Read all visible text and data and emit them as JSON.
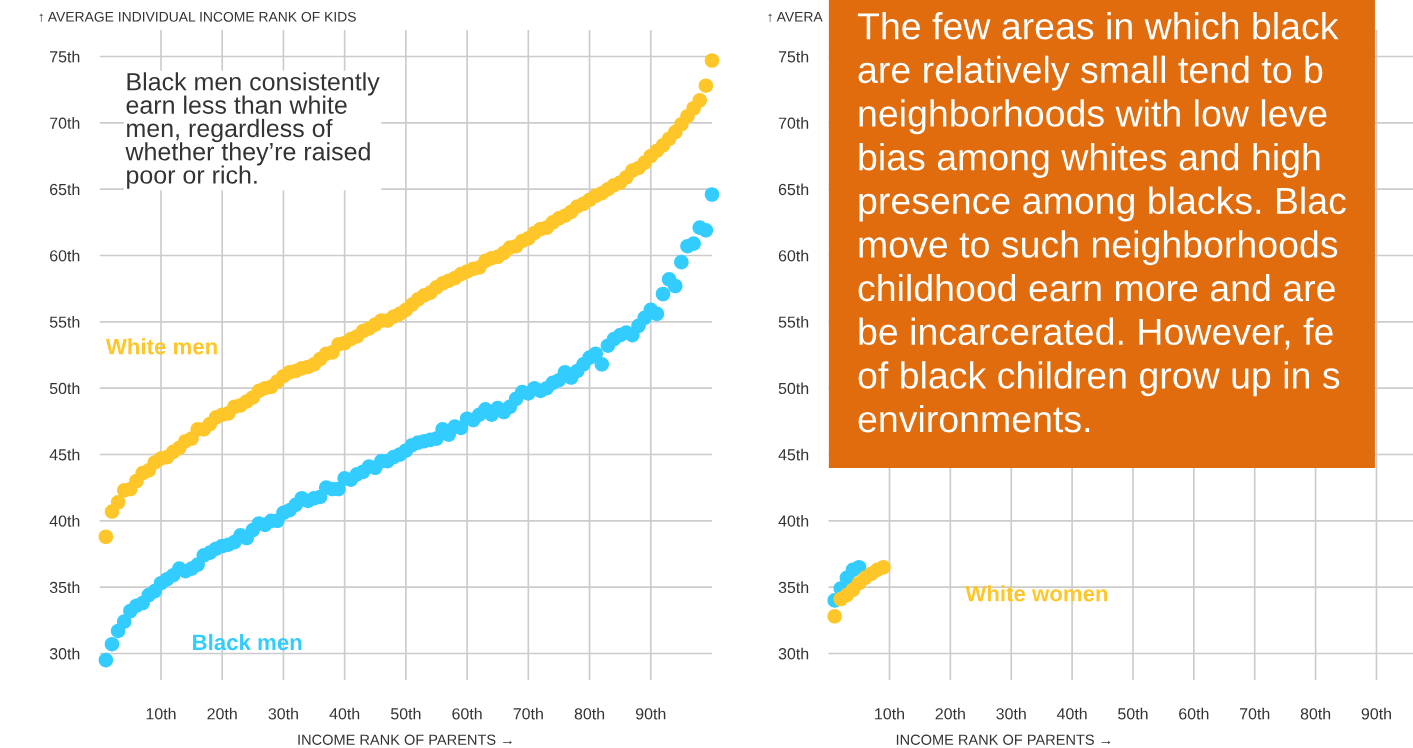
{
  "chart_data": [
    {
      "type": "scatter",
      "ylabel": "↑ AVERAGE INDIVIDUAL INCOME RANK OF KIDS",
      "xlabel": "INCOME RANK OF PARENTS →",
      "annotations": [
        "Black men consistently\nearn less than white\nmen, regardless of\nwhether they’re raised\npoor or rich."
      ],
      "xlim": [
        0,
        100
      ],
      "ylim": [
        28,
        77
      ],
      "xticks": [
        {
          "value": 10,
          "label": "10th"
        },
        {
          "value": 20,
          "label": "20th"
        },
        {
          "value": 30,
          "label": "30th"
        },
        {
          "value": 40,
          "label": "40th"
        },
        {
          "value": 50,
          "label": "50th"
        },
        {
          "value": 60,
          "label": "60th"
        },
        {
          "value": 70,
          "label": "70th"
        },
        {
          "value": 80,
          "label": "80th"
        },
        {
          "value": 90,
          "label": "90th"
        }
      ],
      "yticks": [
        {
          "value": 30,
          "label": "30th"
        },
        {
          "value": 35,
          "label": "35th"
        },
        {
          "value": 40,
          "label": "40th"
        },
        {
          "value": 45,
          "label": "45th"
        },
        {
          "value": 50,
          "label": "50th"
        },
        {
          "value": 55,
          "label": "55th"
        },
        {
          "value": 60,
          "label": "60th"
        },
        {
          "value": 65,
          "label": "65th"
        },
        {
          "value": 70,
          "label": "70th"
        },
        {
          "value": 75,
          "label": "75th"
        }
      ],
      "grid": true,
      "marker": "circle",
      "x": [
        1,
        2,
        3,
        4,
        5,
        6,
        7,
        8,
        9,
        10,
        11,
        12,
        13,
        14,
        15,
        16,
        17,
        18,
        19,
        20,
        21,
        22,
        23,
        24,
        25,
        26,
        27,
        28,
        29,
        30,
        31,
        32,
        33,
        34,
        35,
        36,
        37,
        38,
        39,
        40,
        41,
        42,
        43,
        44,
        45,
        46,
        47,
        48,
        49,
        50,
        51,
        52,
        53,
        54,
        55,
        56,
        57,
        58,
        59,
        60,
        61,
        62,
        63,
        64,
        65,
        66,
        67,
        68,
        69,
        70,
        71,
        72,
        73,
        74,
        75,
        76,
        77,
        78,
        79,
        80,
        81,
        82,
        83,
        84,
        85,
        86,
        87,
        88,
        89,
        90,
        91,
        92,
        93,
        94,
        95,
        96,
        97,
        98,
        99,
        100
      ],
      "series": [
        {
          "name": "White men",
          "color": "#ffc629",
          "values": [
            38.8,
            40.7,
            41.4,
            42.3,
            42.4,
            43.0,
            43.6,
            43.8,
            44.4,
            44.7,
            44.8,
            45.2,
            45.5,
            46.0,
            46.2,
            46.9,
            46.9,
            47.3,
            47.8,
            48.0,
            48.1,
            48.6,
            48.7,
            49.0,
            49.3,
            49.8,
            50.0,
            50.1,
            50.5,
            50.9,
            51.2,
            51.3,
            51.5,
            51.6,
            51.8,
            52.2,
            52.6,
            52.7,
            53.3,
            53.4,
            53.7,
            53.9,
            54.3,
            54.5,
            54.8,
            55.1,
            55.1,
            55.4,
            55.6,
            55.9,
            56.3,
            56.7,
            57.0,
            57.2,
            57.6,
            57.9,
            58.1,
            58.3,
            58.6,
            58.8,
            59.0,
            59.1,
            59.6,
            59.8,
            59.9,
            60.2,
            60.6,
            60.7,
            61.1,
            61.3,
            61.7,
            62.0,
            62.1,
            62.5,
            62.8,
            63.0,
            63.3,
            63.7,
            63.9,
            64.2,
            64.5,
            64.7,
            65.0,
            65.3,
            65.5,
            65.9,
            66.4,
            66.6,
            67.0,
            67.5,
            67.9,
            68.3,
            68.8,
            69.3,
            69.9,
            70.5,
            71.1,
            71.7,
            72.8,
            74.7
          ]
        },
        {
          "name": "Black men",
          "color": "#33ccff",
          "values": [
            29.5,
            30.7,
            31.7,
            32.4,
            33.2,
            33.6,
            33.8,
            34.4,
            34.7,
            35.3,
            35.6,
            35.9,
            36.4,
            36.2,
            36.4,
            36.7,
            37.4,
            37.6,
            37.9,
            38.1,
            38.2,
            38.4,
            38.9,
            38.7,
            39.3,
            39.8,
            39.7,
            40.0,
            40.0,
            40.6,
            40.8,
            41.2,
            41.7,
            41.5,
            41.7,
            41.8,
            42.5,
            42.4,
            42.4,
            43.2,
            43.1,
            43.5,
            43.7,
            44.1,
            44.0,
            44.5,
            44.5,
            44.8,
            45.0,
            45.3,
            45.7,
            45.9,
            46.0,
            46.1,
            46.2,
            46.9,
            46.5,
            47.1,
            47.0,
            47.7,
            47.6,
            48.0,
            48.4,
            48.0,
            48.5,
            48.2,
            48.6,
            49.2,
            49.7,
            49.6,
            50.0,
            49.8,
            50.0,
            50.4,
            50.6,
            51.2,
            50.8,
            51.3,
            51.8,
            52.3,
            52.6,
            51.8,
            53.2,
            53.7,
            54.0,
            54.2,
            54.0,
            54.7,
            55.3,
            55.9,
            55.6,
            57.1,
            58.2,
            57.7,
            59.5,
            60.7,
            60.9,
            62.1,
            61.9,
            64.6
          ]
        }
      ]
    },
    {
      "type": "scatter",
      "ylabel": "↑ AVERA",
      "xlabel": "INCOME RANK OF PARENTS →",
      "annotations": [
        "The few areas in which black\nare relatively small tend to b\nneighborhoods with low leve\nbias among whites and high\npresence among blacks. Blac\nmove to such neighborhoods\nchildhood earn more and are\nbe incarcerated. However, fe\nof black children grow up in s\nenvironments."
      ],
      "xlim": [
        0,
        96
      ],
      "ylim": [
        28,
        77
      ],
      "xticks": [
        {
          "value": 10,
          "label": "10th"
        },
        {
          "value": 20,
          "label": "20th"
        },
        {
          "value": 30,
          "label": "30th"
        },
        {
          "value": 40,
          "label": "40th"
        },
        {
          "value": 50,
          "label": "50th"
        },
        {
          "value": 60,
          "label": "60th"
        },
        {
          "value": 70,
          "label": "70th"
        },
        {
          "value": 80,
          "label": "80th"
        },
        {
          "value": 90,
          "label": "90th"
        }
      ],
      "yticks": [
        {
          "value": 30,
          "label": "30th"
        },
        {
          "value": 35,
          "label": "35th"
        },
        {
          "value": 40,
          "label": "40th"
        },
        {
          "value": 45,
          "label": "45th"
        },
        {
          "value": 50,
          "label": "50th"
        },
        {
          "value": 55,
          "label": "55th"
        },
        {
          "value": 60,
          "label": "60th"
        },
        {
          "value": 65,
          "label": "65th"
        },
        {
          "value": 70,
          "label": "70th"
        },
        {
          "value": 75,
          "label": "75th"
        }
      ],
      "grid": true,
      "marker": "circle",
      "series": [
        {
          "color": "#33ccff",
          "x": [
            1,
            2,
            3,
            4,
            5
          ],
          "values": [
            34.0,
            34.9,
            35.7,
            36.3,
            36.5
          ]
        },
        {
          "name": "White women",
          "color": "#ffc629",
          "x": [
            1,
            2,
            3,
            4,
            5,
            6,
            7,
            8,
            9
          ],
          "values": [
            32.8,
            34.1,
            34.4,
            34.8,
            35.3,
            35.7,
            36.0,
            36.3,
            36.5
          ]
        }
      ]
    }
  ]
}
